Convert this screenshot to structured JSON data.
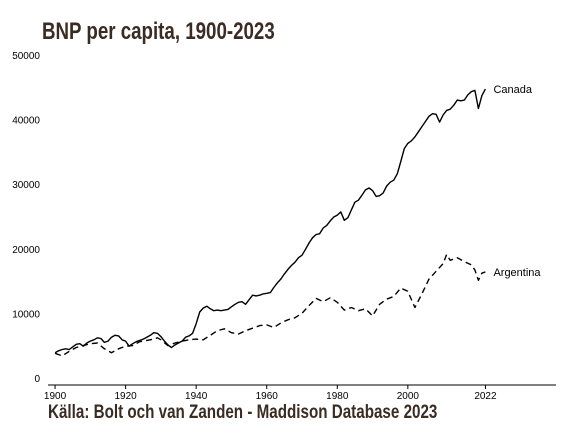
{
  "title": "BNP per capita, 1900-2023",
  "source": "Källa: Bolt och van Zanden - Maddison Database 2023",
  "chart_data": {
    "type": "line",
    "title": "BNP per capita, 1900-2023",
    "xlabel": "",
    "ylabel": "",
    "xlim": [
      1898,
      2042
    ],
    "ylim": [
      0,
      50000
    ],
    "x_ticks": [
      1900,
      1920,
      1940,
      1960,
      1980,
      2000,
      2022
    ],
    "y_ticks": [
      0,
      10000,
      20000,
      30000,
      40000,
      50000
    ],
    "grid": false,
    "legend": "inline labels at line ends",
    "series": [
      {
        "name": "Canada",
        "style": "solid",
        "color": "#000000",
        "x": [
          1900,
          1901,
          1902,
          1903,
          1904,
          1905,
          1906,
          1907,
          1908,
          1909,
          1910,
          1911,
          1912,
          1913,
          1914,
          1915,
          1916,
          1917,
          1918,
          1919,
          1920,
          1921,
          1922,
          1923,
          1924,
          1925,
          1926,
          1927,
          1928,
          1929,
          1930,
          1931,
          1932,
          1933,
          1934,
          1935,
          1936,
          1937,
          1938,
          1939,
          1940,
          1941,
          1942,
          1943,
          1944,
          1945,
          1946,
          1947,
          1948,
          1949,
          1950,
          1951,
          1952,
          1953,
          1954,
          1955,
          1956,
          1957,
          1958,
          1959,
          1960,
          1961,
          1962,
          1963,
          1964,
          1965,
          1966,
          1967,
          1968,
          1969,
          1970,
          1971,
          1972,
          1973,
          1974,
          1975,
          1976,
          1977,
          1978,
          1979,
          1980,
          1981,
          1982,
          1983,
          1984,
          1985,
          1986,
          1987,
          1988,
          1989,
          1990,
          1991,
          1992,
          1993,
          1994,
          1995,
          1996,
          1997,
          1998,
          1999,
          2000,
          2001,
          2002,
          2003,
          2004,
          2005,
          2006,
          2007,
          2008,
          2009,
          2010,
          2011,
          2012,
          2013,
          2014,
          2015,
          2016,
          2017,
          2018,
          2019,
          2020,
          2021,
          2022
        ],
        "values": [
          5000,
          5300,
          5500,
          5600,
          5500,
          5900,
          6300,
          6400,
          6000,
          6500,
          6800,
          7000,
          7300,
          7200,
          6600,
          6800,
          7400,
          7700,
          7600,
          7000,
          6800,
          6000,
          6400,
          6700,
          6900,
          7100,
          7400,
          7700,
          8100,
          8000,
          7500,
          6800,
          6200,
          5800,
          6200,
          6500,
          6800,
          7400,
          7600,
          8000,
          9500,
          11300,
          11900,
          12200,
          11800,
          11500,
          11600,
          11500,
          11600,
          11700,
          12100,
          12500,
          12800,
          12900,
          12500,
          13200,
          13900,
          13800,
          13900,
          14100,
          14200,
          14300,
          15100,
          15800,
          16400,
          17200,
          17900,
          18500,
          19000,
          19700,
          20100,
          21000,
          22000,
          22800,
          23300,
          23400,
          24300,
          24700,
          25400,
          26000,
          26300,
          26800,
          25500,
          25900,
          27100,
          28300,
          28600,
          29400,
          30200,
          30500,
          30100,
          29200,
          29300,
          29700,
          30800,
          31400,
          31700,
          32700,
          34600,
          36600,
          37400,
          37800,
          38400,
          39200,
          40000,
          40800,
          41600,
          42000,
          41900,
          40700,
          41800,
          42500,
          42700,
          43300,
          44100,
          44000,
          44100,
          44900,
          45400,
          45600,
          42800,
          44800,
          45800
        ]
      },
      {
        "name": "Argentina",
        "style": "dashed",
        "color": "#000000",
        "x": [
          1900,
          1902,
          1904,
          1906,
          1908,
          1910,
          1912,
          1914,
          1916,
          1918,
          1920,
          1922,
          1924,
          1926,
          1928,
          1929,
          1930,
          1932,
          1934,
          1936,
          1938,
          1940,
          1942,
          1944,
          1946,
          1948,
          1950,
          1952,
          1954,
          1956,
          1958,
          1960,
          1962,
          1964,
          1966,
          1968,
          1970,
          1972,
          1974,
          1976,
          1978,
          1980,
          1982,
          1984,
          1986,
          1988,
          1990,
          1992,
          1994,
          1996,
          1998,
          2000,
          2002,
          2004,
          2006,
          2008,
          2010,
          2011,
          2012,
          2014,
          2016,
          2018,
          2019,
          2020,
          2021,
          2022
        ],
        "values": [
          4900,
          4500,
          5200,
          5800,
          6100,
          6400,
          6500,
          5600,
          5000,
          5600,
          6000,
          6100,
          6700,
          6900,
          7100,
          7300,
          7000,
          6100,
          6500,
          6800,
          7000,
          7100,
          7000,
          7700,
          8400,
          8700,
          8100,
          7900,
          8400,
          8800,
          9200,
          9300,
          8900,
          9600,
          10100,
          10400,
          11100,
          12300,
          13400,
          12900,
          13500,
          12800,
          11600,
          12000,
          11500,
          11800,
          10700,
          12500,
          13300,
          13700,
          15000,
          14500,
          12000,
          14100,
          16400,
          17600,
          18800,
          20200,
          19300,
          19700,
          19100,
          18600,
          17800,
          16200,
          17300,
          17500
        ]
      }
    ]
  }
}
